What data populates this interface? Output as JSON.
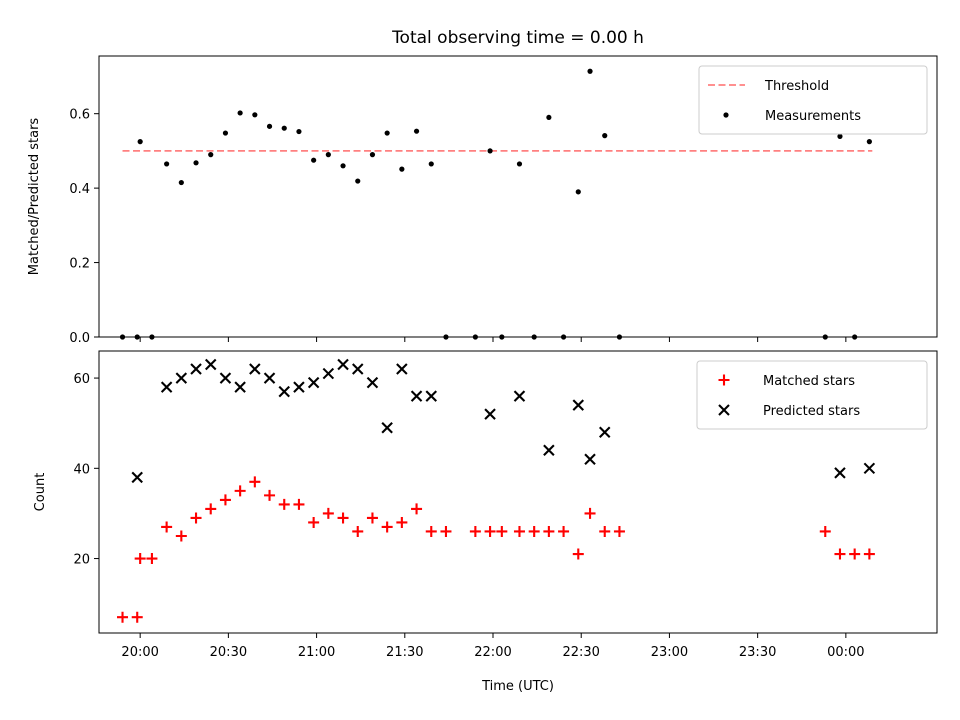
{
  "figure": {
    "title": "Total observing time = 0.00 h",
    "xlabel": "Time (UTC)",
    "x_tick_labels": [
      "20:00",
      "20:30",
      "21:00",
      "21:30",
      "22:00",
      "22:30",
      "23:00",
      "23:30",
      "00:00"
    ]
  },
  "chart_data": [
    {
      "type": "scatter",
      "ylabel": "Matched/Predicted stars",
      "xlim": [
        "19:46",
        "00:31"
      ],
      "ylim": [
        0,
        0.755
      ],
      "y_ticks": [
        0.0,
        0.2,
        0.4,
        0.6
      ],
      "y_tick_labels": [
        "0.0",
        "0.2",
        "0.4",
        "0.6"
      ],
      "legend_position": "upper right",
      "threshold": {
        "name": "Threshold",
        "value": 0.5,
        "x_start": "19:54",
        "x_end": "00:09",
        "color": "#ff8080",
        "style": "dashed"
      },
      "series": [
        {
          "name": "Measurements",
          "color": "#000000",
          "marker": "dot",
          "points": [
            [
              "19:54",
              0.0
            ],
            [
              "19:59",
              0.0
            ],
            [
              "20:00",
              0.525
            ],
            [
              "20:04",
              0.0
            ],
            [
              "20:09",
              0.465
            ],
            [
              "20:14",
              0.415
            ],
            [
              "20:19",
              0.468
            ],
            [
              "20:24",
              0.49
            ],
            [
              "20:29",
              0.548
            ],
            [
              "20:34",
              0.602
            ],
            [
              "20:39",
              0.597
            ],
            [
              "20:44",
              0.566
            ],
            [
              "20:49",
              0.561
            ],
            [
              "20:54",
              0.552
            ],
            [
              "20:59",
              0.475
            ],
            [
              "21:04",
              0.49
            ],
            [
              "21:09",
              0.46
            ],
            [
              "21:14",
              0.419
            ],
            [
              "21:19",
              0.49
            ],
            [
              "21:24",
              0.548
            ],
            [
              "21:29",
              0.451
            ],
            [
              "21:34",
              0.553
            ],
            [
              "21:39",
              0.465
            ],
            [
              "21:44",
              0.0
            ],
            [
              "21:54",
              0.0
            ],
            [
              "21:59",
              0.5
            ],
            [
              "22:03",
              0.0
            ],
            [
              "22:09",
              0.465
            ],
            [
              "22:14",
              0.0
            ],
            [
              "22:19",
              0.59
            ],
            [
              "22:24",
              0.0
            ],
            [
              "22:29",
              0.39
            ],
            [
              "22:33",
              0.714
            ],
            [
              "22:38",
              0.541
            ],
            [
              "22:43",
              0.0
            ],
            [
              "23:53",
              0.0
            ],
            [
              "23:58",
              0.539
            ],
            [
              "00:03",
              0.0
            ],
            [
              "00:08",
              0.525
            ]
          ]
        }
      ]
    },
    {
      "type": "scatter",
      "ylabel": "Count",
      "xlim": [
        "19:46",
        "00:31"
      ],
      "ylim": [
        3.5,
        66
      ],
      "y_ticks": [
        20,
        40,
        60
      ],
      "y_tick_labels": [
        "20",
        "40",
        "60"
      ],
      "legend_position": "upper right",
      "series": [
        {
          "name": "Matched stars",
          "color": "#ff0000",
          "marker": "plus",
          "points": [
            [
              "19:54",
              7
            ],
            [
              "19:59",
              7
            ],
            [
              "20:00",
              20
            ],
            [
              "20:04",
              20
            ],
            [
              "20:09",
              27
            ],
            [
              "20:14",
              25
            ],
            [
              "20:19",
              29
            ],
            [
              "20:24",
              31
            ],
            [
              "20:29",
              33
            ],
            [
              "20:34",
              35
            ],
            [
              "20:39",
              37
            ],
            [
              "20:44",
              34
            ],
            [
              "20:49",
              32
            ],
            [
              "20:54",
              32
            ],
            [
              "20:59",
              28
            ],
            [
              "21:04",
              30
            ],
            [
              "21:09",
              29
            ],
            [
              "21:14",
              26
            ],
            [
              "21:19",
              29
            ],
            [
              "21:24",
              27
            ],
            [
              "21:29",
              28
            ],
            [
              "21:34",
              31
            ],
            [
              "21:39",
              26
            ],
            [
              "21:44",
              26
            ],
            [
              "21:54",
              26
            ],
            [
              "21:59",
              26
            ],
            [
              "22:03",
              26
            ],
            [
              "22:09",
              26
            ],
            [
              "22:14",
              26
            ],
            [
              "22:19",
              26
            ],
            [
              "22:24",
              26
            ],
            [
              "22:29",
              21
            ],
            [
              "22:33",
              30
            ],
            [
              "22:38",
              26
            ],
            [
              "22:43",
              26
            ],
            [
              "23:53",
              26
            ],
            [
              "23:58",
              21
            ],
            [
              "00:03",
              21
            ],
            [
              "00:08",
              21
            ]
          ]
        },
        {
          "name": "Predicted stars",
          "color": "#000000",
          "marker": "x",
          "points": [
            [
              "19:59",
              38
            ],
            [
              "20:09",
              58
            ],
            [
              "20:14",
              60
            ],
            [
              "20:19",
              62
            ],
            [
              "20:24",
              63
            ],
            [
              "20:29",
              60
            ],
            [
              "20:34",
              58
            ],
            [
              "20:39",
              62
            ],
            [
              "20:44",
              60
            ],
            [
              "20:49",
              57
            ],
            [
              "20:54",
              58
            ],
            [
              "20:59",
              59
            ],
            [
              "21:04",
              61
            ],
            [
              "21:09",
              63
            ],
            [
              "21:14",
              62
            ],
            [
              "21:19",
              59
            ],
            [
              "21:24",
              49
            ],
            [
              "21:29",
              62
            ],
            [
              "21:34",
              56
            ],
            [
              "21:39",
              56
            ],
            [
              "21:59",
              52
            ],
            [
              "22:09",
              56
            ],
            [
              "22:19",
              44
            ],
            [
              "22:29",
              54
            ],
            [
              "22:33",
              42
            ],
            [
              "22:38",
              48
            ],
            [
              "23:58",
              39
            ],
            [
              "00:08",
              40
            ]
          ]
        }
      ]
    }
  ]
}
